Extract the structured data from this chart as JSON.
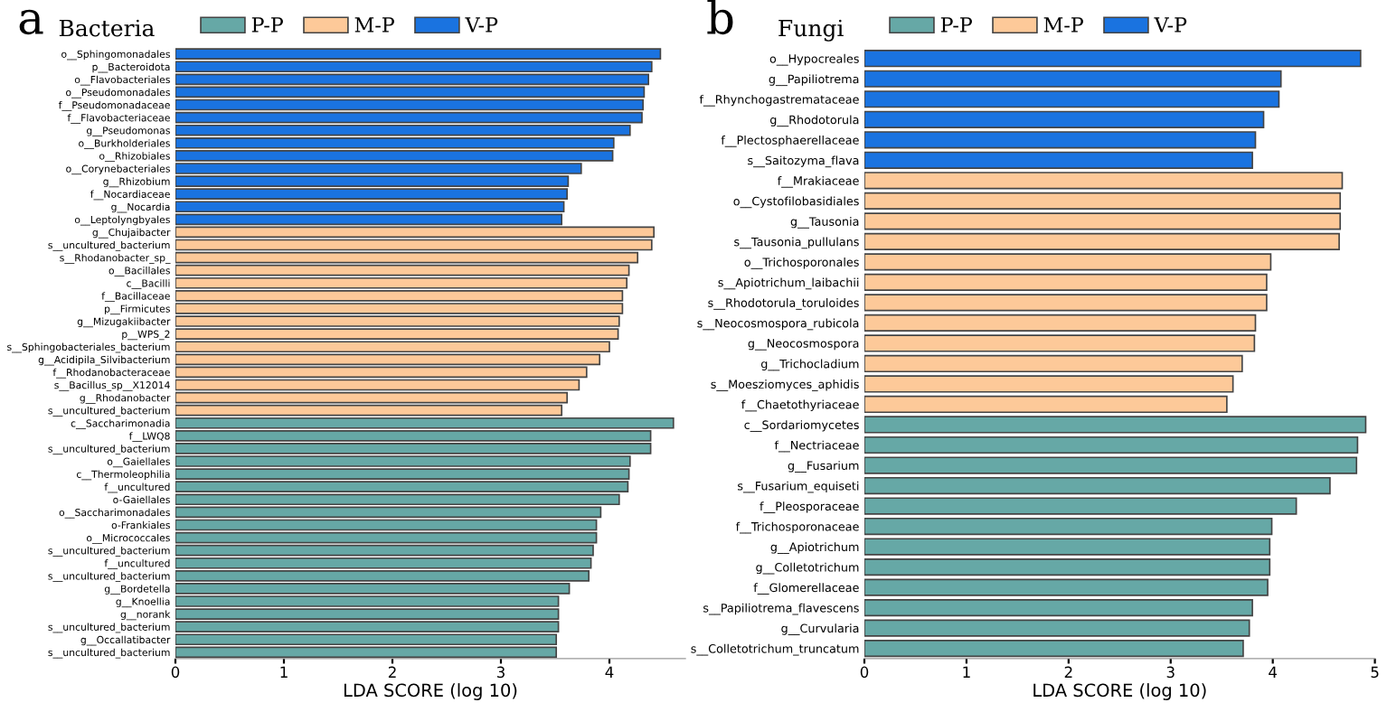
{
  "chart_data": [
    {
      "type": "bar",
      "orientation": "horizontal",
      "title": "Bacteria",
      "xlabel": "LDA SCORE (log 10)",
      "annotations": [
        "a"
      ],
      "legend": "top",
      "grid": false,
      "categories": [
        "o__Sphingomonadales",
        "p__Bacteroidota",
        "o__Flavobacteriales",
        "o__Pseudomonadales",
        "f__Pseudomonadaceae",
        "f__Flavobacteriaceae",
        "g__Pseudomonas",
        "o__Burkholderiales",
        "o__Rhizobiales",
        "o__Corynebacteriales",
        "g__Rhizobium",
        "f__Nocardiaceae",
        "g__Nocardia",
        "o__Leptolyngbyales",
        "g__Chujaibacter",
        "s__uncultured_bacterium",
        "s__Rhodanobacter_sp_",
        "o__Bacillales",
        "c__Bacilli",
        "f__Bacillaceae",
        "p__Firmicutes",
        "g__Mizugakiibacter",
        "p__WPS_2",
        "s__Sphingobacteriales_bacterium",
        "g__Acidipila_Silvibacterium",
        "f__Rhodanobacteraceae",
        "s__Bacillus_sp__X12014",
        "g__Rhodanobacter",
        "s__uncultured_bacterium",
        "c__Saccharimonadia",
        "f__LWQ8",
        "s__uncultured_bacterium",
        "o__Gaiellales",
        "c__Thermoleophilia",
        "f__uncultured",
        "o-Gaiellales",
        "o__Saccharimonadales",
        "o-Frankiales",
        "o__Micrococcales",
        "s__uncultured_bacterium",
        "f__uncultured",
        "s__uncultured_bacterium",
        "g__Bordetella",
        "g__Knoellia",
        "g__norank",
        "s__uncultured_bacterium",
        "g__Occallatibacter",
        "s__uncultured_bacterium"
      ],
      "xlim": [
        0,
        4.7
      ],
      "xticks": [
        0,
        1,
        2,
        3,
        4
      ],
      "series": [
        {
          "name": "P-P",
          "color": "#66a8a6",
          "values": [
            null,
            null,
            null,
            null,
            null,
            null,
            null,
            null,
            null,
            null,
            null,
            null,
            null,
            null,
            null,
            null,
            null,
            null,
            null,
            null,
            null,
            null,
            null,
            null,
            null,
            null,
            null,
            null,
            null,
            4.59,
            4.38,
            4.38,
            4.19,
            4.18,
            4.17,
            4.09,
            3.92,
            3.88,
            3.88,
            3.85,
            3.83,
            3.81,
            3.63,
            3.53,
            3.53,
            3.53,
            3.51,
            3.51
          ]
        },
        {
          "name": "M-P",
          "color": "#fdc999",
          "values": [
            null,
            null,
            null,
            null,
            null,
            null,
            null,
            null,
            null,
            null,
            null,
            null,
            null,
            null,
            4.41,
            4.39,
            4.26,
            4.18,
            4.16,
            4.12,
            4.12,
            4.09,
            4.08,
            4.0,
            3.91,
            3.79,
            3.72,
            3.61,
            3.56,
            null,
            null,
            null,
            null,
            null,
            null,
            null,
            null,
            null,
            null,
            null,
            null,
            null,
            null,
            null,
            null,
            null,
            null,
            null
          ]
        },
        {
          "name": "V-P",
          "color": "#1a73e0",
          "values": [
            4.47,
            4.39,
            4.36,
            4.32,
            4.31,
            4.3,
            4.19,
            4.04,
            4.03,
            3.74,
            3.62,
            3.61,
            3.58,
            3.56,
            null,
            null,
            null,
            null,
            null,
            null,
            null,
            null,
            null,
            null,
            null,
            null,
            null,
            null,
            null,
            null,
            null,
            null,
            null,
            null,
            null,
            null,
            null,
            null,
            null,
            null,
            null,
            null,
            null,
            null,
            null,
            null,
            null,
            null
          ]
        }
      ]
    },
    {
      "type": "bar",
      "orientation": "horizontal",
      "title": "Fungi",
      "xlabel": "LDA SCORE (log 10)",
      "annotations": [
        "b"
      ],
      "legend": "top",
      "grid": false,
      "categories": [
        "o__Hypocreales",
        "g__Papiliotrema",
        "f__Rhynchogastremataceae",
        "g__Rhodotorula",
        "f__Plectosphaerellaceae",
        "s__Saitozyma_flava",
        "f__Mrakiaceae",
        "o__Cystofilobasidiales",
        "g__Tausonia",
        "s__Tausonia_pullulans",
        "o__Trichosporonales",
        "s__Apiotrichum_laibachii",
        "s__Rhodotorula_toruloides",
        "s__Neocosmospora_rubicola",
        "g__Neocosmospora",
        "g__Trichocladium",
        "s__Moesziomyces_aphidis",
        "f__Chaetothyriaceae",
        "c__Sordariomycetes",
        "f__Nectriaceae",
        "g__Fusarium",
        "s__Fusarium_equiseti",
        "f__Pleosporaceae",
        "f__Trichosporonaceae",
        "g__Apiotrichum",
        "g__Colletotrichum",
        "f__Glomerellaceae",
        "s__Papiliotrema_flavescens",
        "g__Curvularia",
        "s__Colletotrichum_truncatum"
      ],
      "xlim": [
        0,
        5
      ],
      "xticks": [
        0,
        1,
        2,
        3,
        4,
        5
      ],
      "series": [
        {
          "name": "P-P",
          "color": "#66a8a6",
          "values": [
            null,
            null,
            null,
            null,
            null,
            null,
            null,
            null,
            null,
            null,
            null,
            null,
            null,
            null,
            null,
            null,
            null,
            null,
            4.91,
            4.83,
            4.82,
            4.56,
            4.23,
            3.99,
            3.97,
            3.97,
            3.95,
            3.8,
            3.77,
            3.71
          ]
        },
        {
          "name": "M-P",
          "color": "#fdc999",
          "values": [
            null,
            null,
            null,
            null,
            null,
            null,
            4.68,
            4.66,
            4.66,
            4.65,
            3.98,
            3.94,
            3.94,
            3.83,
            3.82,
            3.7,
            3.61,
            3.55,
            null,
            null,
            null,
            null,
            null,
            null,
            null,
            null,
            null,
            null,
            null,
            null
          ]
        },
        {
          "name": "V-P",
          "color": "#1a73e0",
          "values": [
            4.86,
            4.08,
            4.06,
            3.91,
            3.83,
            3.8,
            null,
            null,
            null,
            null,
            null,
            null,
            null,
            null,
            null,
            null,
            null,
            null,
            null,
            null,
            null,
            null,
            null,
            null,
            null,
            null,
            null,
            null,
            null,
            null
          ]
        }
      ]
    }
  ]
}
